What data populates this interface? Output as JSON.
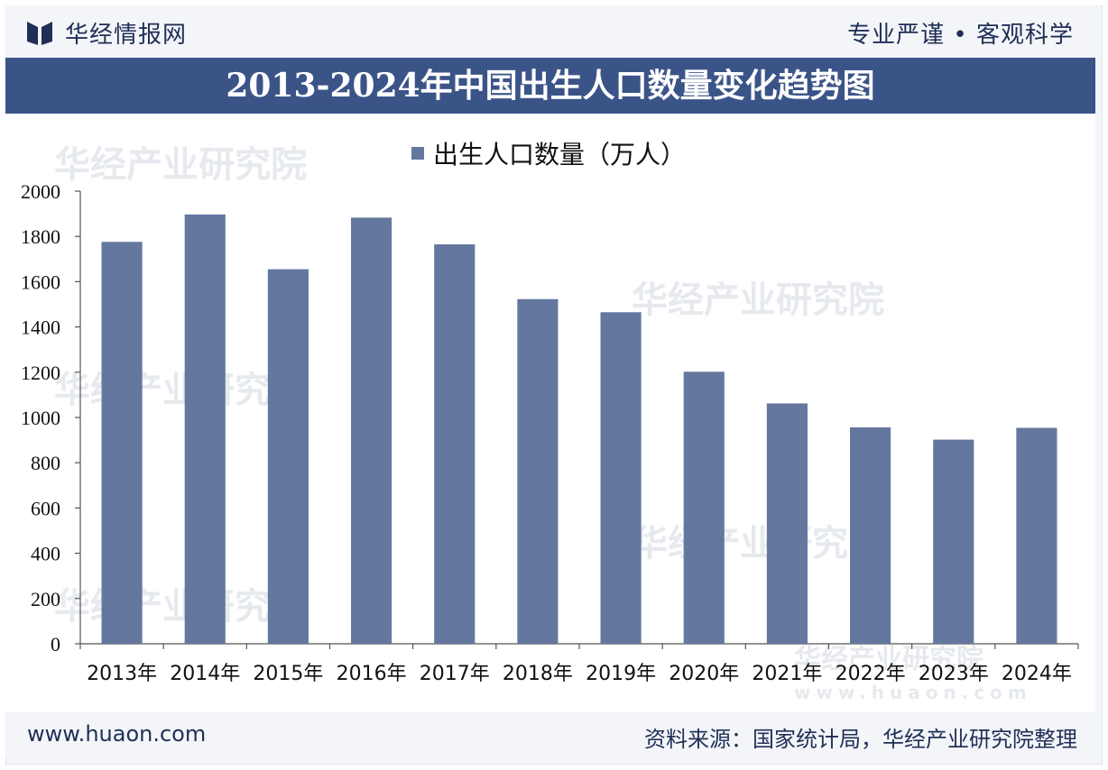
{
  "header": {
    "brand": "华经情报网",
    "slogan": "专业严谨 • 客观科学"
  },
  "chart_data": {
    "type": "bar",
    "title": "2013-2024年中国出生人口数量变化趋势图",
    "categories": [
      "2013年",
      "2014年",
      "2015年",
      "2016年",
      "2017年",
      "2018年",
      "2019年",
      "2020年",
      "2021年",
      "2022年",
      "2023年",
      "2024年"
    ],
    "series": [
      {
        "name": "出生人口数量（万人）",
        "values": [
          1776,
          1897,
          1655,
          1883,
          1765,
          1523,
          1465,
          1202,
          1062,
          956,
          902,
          954
        ]
      }
    ],
    "ylim": [
      0,
      2000
    ],
    "yticks": [
      0,
      200,
      400,
      600,
      800,
      1000,
      1200,
      1400,
      1600,
      1800,
      2000
    ],
    "legend_position": "top-center",
    "colors": {
      "bar": "#64789f",
      "title_bg": "#3b5488"
    }
  },
  "footer": {
    "website": "www.huaon.com",
    "source": "资料来源：国家统计局，华经产业研究院整理"
  },
  "watermark": {
    "text": "华经产业研究院",
    "url": "www.huaon.com"
  }
}
